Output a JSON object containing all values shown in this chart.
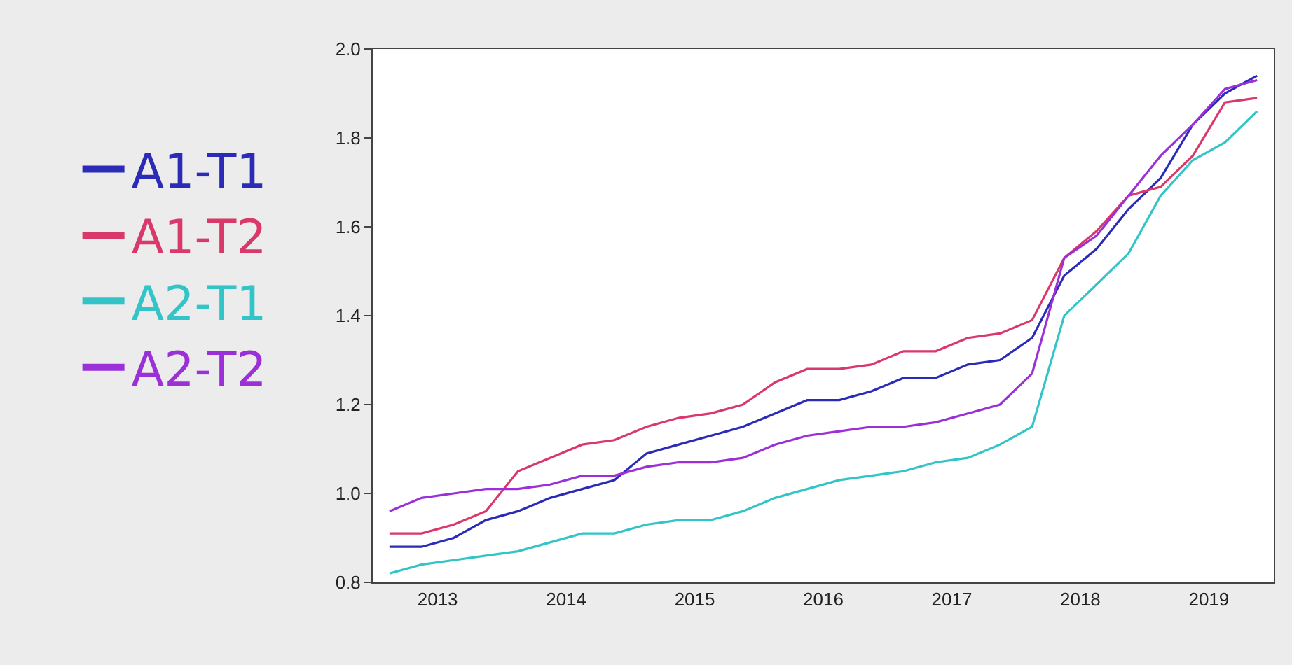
{
  "chart_data": {
    "type": "line",
    "x": [
      2013,
      2013.25,
      2013.5,
      2013.75,
      2014,
      2014.25,
      2014.5,
      2014.75,
      2015,
      2015.25,
      2015.5,
      2015.75,
      2016,
      2016.25,
      2016.5,
      2016.75,
      2017,
      2017.25,
      2017.5,
      2017.75,
      2018,
      2018.25,
      2018.5,
      2018.75,
      2019,
      2019.25,
      2019.5,
      2019.75
    ],
    "xlim": [
      2012.87,
      2019.88
    ],
    "xticks": [
      {
        "value": 2013.375,
        "label": "2013"
      },
      {
        "value": 2014.375,
        "label": "2014"
      },
      {
        "value": 2015.375,
        "label": "2015"
      },
      {
        "value": 2016.375,
        "label": "2016"
      },
      {
        "value": 2017.375,
        "label": "2017"
      },
      {
        "value": 2018.375,
        "label": "2018"
      },
      {
        "value": 2019.375,
        "label": "2019"
      }
    ],
    "ylim": [
      0.8,
      2.0
    ],
    "yticks": [
      {
        "value": 0.8,
        "label": "0.8"
      },
      {
        "value": 1.0,
        "label": "1.0"
      },
      {
        "value": 1.2,
        "label": "1.2"
      },
      {
        "value": 1.4,
        "label": "1.4"
      },
      {
        "value": 1.6,
        "label": "1.6"
      },
      {
        "value": 1.8,
        "label": "1.8"
      },
      {
        "value": 2.0,
        "label": "2.0"
      }
    ],
    "grid": false,
    "legend": "left",
    "marker": "none",
    "line_style": "solid",
    "series": [
      {
        "name": "A1-T1",
        "color": "#2b2bb8",
        "values": [
          0.88,
          0.88,
          0.9,
          0.94,
          0.96,
          0.99,
          1.01,
          1.03,
          1.09,
          1.11,
          1.13,
          1.15,
          1.18,
          1.21,
          1.21,
          1.23,
          1.26,
          1.26,
          1.29,
          1.3,
          1.35,
          1.49,
          1.55,
          1.64,
          1.71,
          1.83,
          1.9,
          1.94
        ]
      },
      {
        "name": "A1-T2",
        "color": "#d9386a",
        "values": [
          0.91,
          0.91,
          0.93,
          0.96,
          1.05,
          1.08,
          1.11,
          1.12,
          1.15,
          1.17,
          1.18,
          1.2,
          1.25,
          1.28,
          1.28,
          1.29,
          1.32,
          1.32,
          1.35,
          1.36,
          1.39,
          1.53,
          1.59,
          1.67,
          1.69,
          1.76,
          1.88,
          1.89
        ]
      },
      {
        "name": "A2-T1",
        "color": "#33c4c8",
        "values": [
          0.82,
          0.84,
          0.85,
          0.86,
          0.87,
          0.89,
          0.91,
          0.91,
          0.93,
          0.94,
          0.94,
          0.96,
          0.99,
          1.01,
          1.03,
          1.04,
          1.05,
          1.07,
          1.08,
          1.11,
          1.15,
          1.4,
          1.47,
          1.54,
          1.67,
          1.75,
          1.79,
          1.86
        ]
      },
      {
        "name": "A2-T2",
        "color": "#9b30d9",
        "values": [
          0.96,
          0.99,
          1.0,
          1.01,
          1.01,
          1.02,
          1.04,
          1.04,
          1.06,
          1.07,
          1.07,
          1.08,
          1.11,
          1.13,
          1.14,
          1.15,
          1.15,
          1.16,
          1.18,
          1.2,
          1.27,
          1.53,
          1.58,
          1.67,
          1.76,
          1.83,
          1.91,
          1.93
        ]
      }
    ]
  }
}
